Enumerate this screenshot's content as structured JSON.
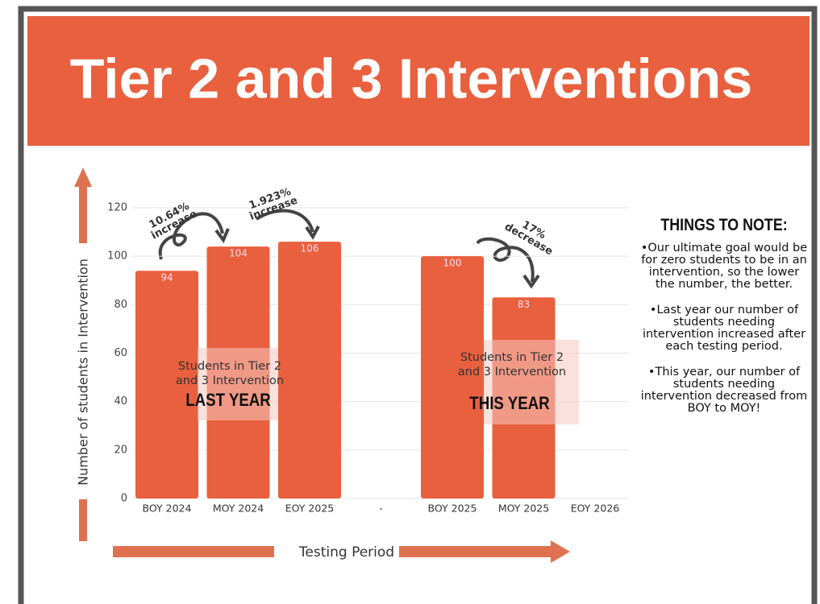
{
  "title": "Tier 2 and 3 Interventions",
  "chart_data": {
    "type": "bar",
    "categories": [
      "BOY 2024",
      "MOY 2024",
      "EOY 2025",
      "-",
      "BOY 2025",
      "MOY 2025",
      "EOY 2026"
    ],
    "values": [
      94,
      104,
      106,
      null,
      100,
      83,
      null
    ],
    "color": "#e8603e",
    "ylim": [
      0,
      120
    ],
    "yticks": [
      0,
      20,
      40,
      60,
      80,
      100,
      120
    ],
    "grid": true,
    "y_label": "Number of students in Intervention",
    "x_label": "Testing Period",
    "annotations": [
      [
        "10.64%",
        "increase"
      ],
      [
        "1.923%",
        "increase"
      ],
      [
        "17%",
        "decrease"
      ]
    ],
    "overlays": [
      {
        "lines": [
          "Students in Tier 2",
          "and 3 Intervention"
        ],
        "label": "LAST YEAR"
      },
      {
        "lines": [
          "Students in Tier 2",
          "and 3 Intervention"
        ],
        "label": "THIS YEAR"
      }
    ]
  },
  "notes": {
    "heading": "THINGS TO NOTE:",
    "items": [
      "•Our ultimate goal would be for zero students to be in an intervention, so the lower the number, the better.",
      "•Last year our number of students needing intervention increased after each testing period.",
      "•This year, our number of students needing intervention decreased from BOY to MOY!"
    ]
  }
}
